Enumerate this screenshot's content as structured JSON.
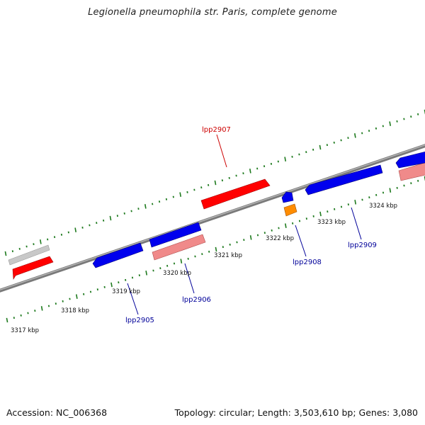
{
  "title": "Legionella pneumophila str. Paris, complete genome",
  "accession": "Accession: NC_006368",
  "summary": "Topology: circular; Length: 3,503,610 bp; Genes: 3,080",
  "colors": {
    "forward_gene": "#ff0000",
    "reverse_gene": "#0000ee",
    "forward_label": "#cc0000",
    "reverse_label": "#000099",
    "pseudo_forward": "#f08a8a",
    "pseudo_other": "#c8c8c8",
    "rna": "#ff8c00",
    "ticks": "#1e7a1e",
    "backbone": "#808080"
  },
  "kbp_labels": [
    {
      "text": "3317 kbp",
      "kbp": 3317
    },
    {
      "text": "3318 kbp",
      "kbp": 3318
    },
    {
      "text": "3319 kbp",
      "kbp": 3319
    },
    {
      "text": "3320 kbp",
      "kbp": 3320
    },
    {
      "text": "3321 kbp",
      "kbp": 3321
    },
    {
      "text": "3322 kbp",
      "kbp": 3322
    },
    {
      "text": "3323 kbp",
      "kbp": 3323
    },
    {
      "text": "3324 kbp",
      "kbp": 3324
    }
  ],
  "gene_labels": [
    {
      "text": "lpp2905",
      "strand": "reverse"
    },
    {
      "text": "lpp2906",
      "strand": "reverse"
    },
    {
      "text": "lpp2907",
      "strand": "forward"
    },
    {
      "text": "lpp2908",
      "strand": "reverse"
    },
    {
      "text": "lpp2909",
      "strand": "reverse"
    }
  ]
}
